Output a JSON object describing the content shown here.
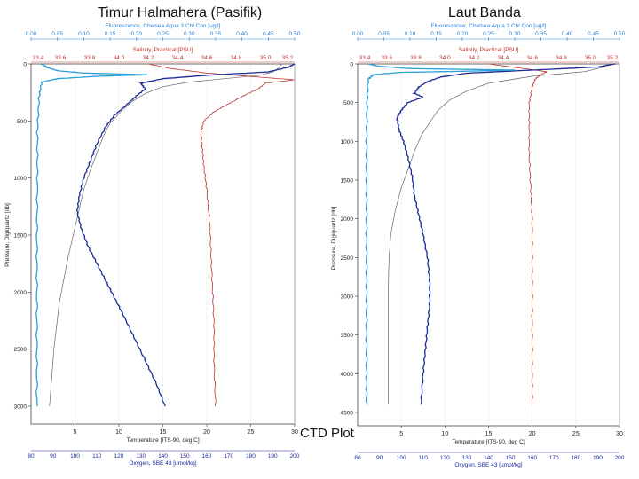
{
  "header": {
    "left_title": "Timur Halmahera (Pasifik)",
    "right_title": "Laut Banda",
    "caption": "CTD Plot"
  },
  "chart_data": [
    {
      "type": "line",
      "title": "Timur Halmahera (Pasifik)",
      "ylabel": "Pressure, Digiquartz [db]",
      "ylim": [
        0,
        3000
      ],
      "yticks": [
        0,
        500,
        1000,
        1500,
        2000,
        2500,
        3000
      ],
      "axes": {
        "fluorescence": {
          "label": "Fluorescence, Chelsea Aqua 3 Chl Con [ug/l]",
          "range": [
            0,
            0.5
          ],
          "ticks": [
            "0.00",
            "0.05",
            "0.10",
            "0.15",
            "0.20",
            "0.25",
            "0.30",
            "0.35",
            "0.40",
            "0.45",
            "0.50"
          ],
          "color": "#2a7fd4"
        },
        "salinity": {
          "label": "Salinity, Practical [PSU]",
          "range": [
            33.4,
            35.2
          ],
          "ticks": [
            "33.4",
            "33.6",
            "33.8",
            "34.0",
            "34.2",
            "34.4",
            "34.6",
            "34.8",
            "35.0",
            "35.2"
          ],
          "color": "#c0302a"
        },
        "temperature": {
          "label": "Temperature [ITS-90, deg C]",
          "range": [
            0,
            30
          ],
          "ticks": [
            "5",
            "10",
            "15",
            "20",
            "25",
            "30"
          ],
          "color": "#222222"
        },
        "oxygen": {
          "label": "Oxygen, SBE 43 [umol/kg]",
          "range": [
            80,
            200
          ],
          "ticks": [
            "80",
            "90",
            "100",
            "110",
            "120",
            "130",
            "140",
            "150",
            "160",
            "170",
            "180",
            "190",
            "200"
          ],
          "color": "#1a2a9a"
        }
      },
      "series": [
        {
          "axis": "temperature",
          "color": "#666666",
          "points": [
            [
              28.5,
              0
            ],
            [
              28.3,
              30
            ],
            [
              27.5,
              70
            ],
            [
              26,
              100
            ],
            [
              22,
              130
            ],
            [
              18,
              160
            ],
            [
              15,
              200
            ],
            [
              13,
              260
            ],
            [
              11.5,
              330
            ],
            [
              10.2,
              420
            ],
            [
              9,
              520
            ],
            [
              8.3,
              620
            ],
            [
              7.6,
              760
            ],
            [
              6.8,
              920
            ],
            [
              6,
              1100
            ],
            [
              5.4,
              1300
            ],
            [
              4.8,
              1500
            ],
            [
              4.2,
              1700
            ],
            [
              3.7,
              1900
            ],
            [
              3.2,
              2100
            ],
            [
              2.9,
              2300
            ],
            [
              2.6,
              2500
            ],
            [
              2.4,
              2700
            ],
            [
              2.2,
              2900
            ],
            [
              2.1,
              3000
            ]
          ]
        },
        {
          "axis": "salinity",
          "color": "#c0302a",
          "points": [
            [
              34.2,
              0
            ],
            [
              34.35,
              40
            ],
            [
              34.6,
              80
            ],
            [
              34.9,
              110
            ],
            [
              35.2,
              140
            ],
            [
              35.0,
              170
            ],
            [
              34.95,
              220
            ],
            [
              34.85,
              280
            ],
            [
              34.75,
              350
            ],
            [
              34.65,
              420
            ],
            [
              34.58,
              500
            ],
            [
              34.56,
              600
            ],
            [
              34.57,
              750
            ],
            [
              34.58,
              900
            ],
            [
              34.6,
              1100
            ],
            [
              34.62,
              1400
            ],
            [
              34.63,
              1700
            ],
            [
              34.64,
              2000
            ],
            [
              34.65,
              2300
            ],
            [
              34.65,
              2600
            ],
            [
              34.66,
              3000
            ]
          ]
        },
        {
          "axis": "oxygen",
          "color": "#1a2a9a",
          "points": [
            [
              200,
              0
            ],
            [
              197,
              30
            ],
            [
              188,
              70
            ],
            [
              160,
              100
            ],
            [
              140,
              130
            ],
            [
              130,
              170
            ],
            [
              132,
              220
            ],
            [
              128,
              280
            ],
            [
              124,
              350
            ],
            [
              118,
              450
            ],
            [
              114,
              550
            ],
            [
              110,
              700
            ],
            [
              107,
              850
            ],
            [
              104,
              1000
            ],
            [
              102,
              1150
            ],
            [
              101,
              1300
            ],
            [
              103,
              1450
            ],
            [
              106,
              1600
            ],
            [
              110,
              1750
            ],
            [
              114,
              1900
            ],
            [
              118,
              2050
            ],
            [
              122,
              2200
            ],
            [
              127,
              2400
            ],
            [
              132,
              2600
            ],
            [
              137,
              2800
            ],
            [
              141,
              3000
            ]
          ]
        },
        {
          "axis": "fluorescence",
          "color": "#2a9fd8",
          "points": [
            [
              0.02,
              0
            ],
            [
              0.03,
              30
            ],
            [
              0.05,
              60
            ],
            [
              0.1,
              80
            ],
            [
              0.22,
              95
            ],
            [
              0.12,
              110
            ],
            [
              0.05,
              130
            ],
            [
              0.02,
              160
            ],
            [
              0.015,
              300
            ],
            [
              0.012,
              600
            ],
            [
              0.012,
              1000
            ],
            [
              0.011,
              1500
            ],
            [
              0.011,
              2000
            ],
            [
              0.011,
              2500
            ],
            [
              0.011,
              3000
            ]
          ]
        }
      ]
    },
    {
      "type": "line",
      "title": "Laut Banda",
      "ylabel": "Pressure, Digiquartz [db]",
      "ylim": [
        0,
        4500
      ],
      "yticks": [
        0,
        500,
        1000,
        1500,
        2000,
        2500,
        3000,
        3500,
        4000,
        4500
      ],
      "axes": {
        "fluorescence": {
          "label": "Fluorescence, Chelsea Aqua 3 Chl Con [ug/l]",
          "range": [
            0,
            0.5
          ],
          "ticks": [
            "0.00",
            "0.05",
            "0.10",
            "0.15",
            "0.20",
            "0.25",
            "0.30",
            "0.35",
            "0.40",
            "0.45",
            "0.50"
          ],
          "color": "#2a7fd4"
        },
        "salinity": {
          "label": "Salinity, Practical [PSU]",
          "range": [
            33.4,
            35.2
          ],
          "ticks": [
            "33.4",
            "33.6",
            "33.8",
            "34.0",
            "34.2",
            "34.4",
            "34.6",
            "34.8",
            "35.0",
            "35.2"
          ],
          "color": "#c0302a"
        },
        "temperature": {
          "label": "Temperature [ITS-90, deg C]",
          "range": [
            0,
            30
          ],
          "ticks": [
            "5",
            "10",
            "15",
            "20",
            "25",
            "30"
          ],
          "color": "#222222"
        },
        "oxygen": {
          "label": "Oxygen, SBE 43 [umol/kg]",
          "range": [
            80,
            200
          ],
          "ticks": [
            "80",
            "90",
            "100",
            "110",
            "120",
            "130",
            "140",
            "150",
            "160",
            "170",
            "180",
            "190",
            "200"
          ],
          "color": "#1a2a9a"
        }
      },
      "series": [
        {
          "axis": "temperature",
          "color": "#666666",
          "points": [
            [
              28.7,
              0
            ],
            [
              28.2,
              40
            ],
            [
              26,
              100
            ],
            [
              20,
              160
            ],
            [
              15,
              250
            ],
            [
              12.5,
              350
            ],
            [
              10.5,
              470
            ],
            [
              9.2,
              600
            ],
            [
              8.3,
              750
            ],
            [
              7.4,
              900
            ],
            [
              6.6,
              1100
            ],
            [
              5.8,
              1350
            ],
            [
              5,
              1600
            ],
            [
              4.3,
              1900
            ],
            [
              3.8,
              2200
            ],
            [
              3.6,
              2500
            ],
            [
              3.5,
              2900
            ],
            [
              3.5,
              3400
            ],
            [
              3.5,
              3900
            ],
            [
              3.5,
              4400
            ]
          ]
        },
        {
          "axis": "salinity",
          "color": "#c0302a",
          "points": [
            [
              34.3,
              0
            ],
            [
              34.5,
              50
            ],
            [
              34.7,
              100
            ],
            [
              34.65,
              150
            ],
            [
              34.62,
              200
            ],
            [
              34.6,
              300
            ],
            [
              34.58,
              500
            ],
            [
              34.58,
              800
            ],
            [
              34.58,
              1200
            ],
            [
              34.59,
              1600
            ],
            [
              34.6,
              2000
            ],
            [
              34.6,
              2500
            ],
            [
              34.6,
              3000
            ],
            [
              34.6,
              3500
            ],
            [
              34.6,
              4000
            ],
            [
              34.6,
              4400
            ]
          ]
        },
        {
          "axis": "oxygen",
          "color": "#1a2a9a",
          "points": [
            [
              198,
              0
            ],
            [
              190,
              40
            ],
            [
              160,
              80
            ],
            [
              130,
              120
            ],
            [
              118,
              170
            ],
            [
              112,
              230
            ],
            [
              108,
              300
            ],
            [
              106,
              380
            ],
            [
              110,
              430
            ],
            [
              103,
              500
            ],
            [
              100,
              600
            ],
            [
              98,
              700
            ],
            [
              99,
              850
            ],
            [
              101,
              1000
            ],
            [
              103,
              1200
            ],
            [
              105,
              1450
            ],
            [
              106,
              1700
            ],
            [
              108,
              1950
            ],
            [
              110,
              2200
            ],
            [
              112,
              2500
            ],
            [
              113,
              2800
            ],
            [
              113,
              3100
            ],
            [
              112,
              3400
            ],
            [
              111,
              3700
            ],
            [
              110,
              4000
            ],
            [
              109,
              4400
            ]
          ]
        },
        {
          "axis": "fluorescence",
          "color": "#2a9fd8",
          "points": [
            [
              0.02,
              0
            ],
            [
              0.04,
              30
            ],
            [
              0.1,
              60
            ],
            [
              0.3,
              80
            ],
            [
              0.2,
              95
            ],
            [
              0.08,
              110
            ],
            [
              0.03,
              140
            ],
            [
              0.02,
              200
            ],
            [
              0.018,
              500
            ],
            [
              0.017,
              1000
            ],
            [
              0.017,
              1500
            ],
            [
              0.017,
              2000
            ],
            [
              0.017,
              2500
            ],
            [
              0.017,
              3000
            ],
            [
              0.017,
              3500
            ],
            [
              0.017,
              4000
            ],
            [
              0.017,
              4400
            ]
          ]
        }
      ]
    }
  ]
}
